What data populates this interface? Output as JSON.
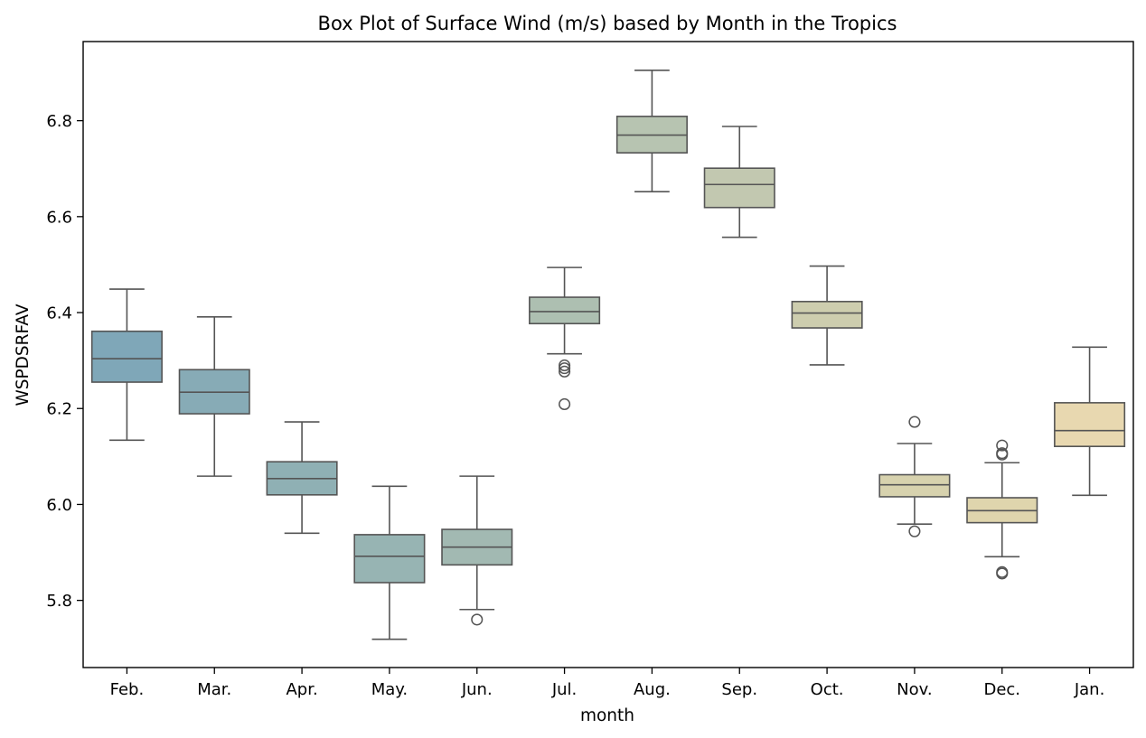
{
  "chart_data": {
    "type": "box",
    "title": "Box Plot of Surface Wind (m/s) based by Month in the Tropics",
    "xlabel": "month",
    "ylabel": "WSPDSRFAV",
    "ylim": [
      5.66,
      6.965
    ],
    "yticks": [
      5.8,
      6.0,
      6.2,
      6.4,
      6.6,
      6.8
    ],
    "ytick_labels": [
      "5.8",
      "6.0",
      "6.2",
      "6.4",
      "6.6",
      "6.8"
    ],
    "grid": false,
    "categories": [
      "Feb.",
      "Mar.",
      "Apr.",
      "May.",
      "Jun.",
      "Jul.",
      "Aug.",
      "Sep.",
      "Oct.",
      "Nov.",
      "Dec.",
      "Jan."
    ],
    "boxes": [
      {
        "month": "Feb.",
        "whisker_low": 6.134,
        "q1": 6.255,
        "median": 6.304,
        "q3": 6.361,
        "whisker_high": 6.449,
        "outliers": [],
        "color": "#7fa7b8"
      },
      {
        "month": "Mar.",
        "whisker_low": 6.059,
        "q1": 6.189,
        "median": 6.234,
        "q3": 6.281,
        "whisker_high": 6.391,
        "outliers": [],
        "color": "#87abb6"
      },
      {
        "month": "Apr.",
        "whisker_low": 5.94,
        "q1": 6.02,
        "median": 6.054,
        "q3": 6.089,
        "whisker_high": 6.172,
        "outliers": [],
        "color": "#8fb0b4"
      },
      {
        "month": "May.",
        "whisker_low": 5.719,
        "q1": 5.837,
        "median": 5.892,
        "q3": 5.937,
        "whisker_high": 6.038,
        "outliers": [],
        "color": "#97b4b3"
      },
      {
        "month": "Jun.",
        "whisker_low": 5.781,
        "q1": 5.874,
        "median": 5.911,
        "q3": 5.948,
        "whisker_high": 6.059,
        "outliers": [
          5.76
        ],
        "color": "#a2b9b2"
      },
      {
        "month": "Jul.",
        "whisker_low": 6.314,
        "q1": 6.377,
        "median": 6.402,
        "q3": 6.432,
        "whisker_high": 6.494,
        "outliers": [
          6.29,
          6.284,
          6.277,
          6.209
        ],
        "color": "#adbfb1"
      },
      {
        "month": "Aug.",
        "whisker_low": 6.652,
        "q1": 6.733,
        "median": 6.77,
        "q3": 6.809,
        "whisker_high": 6.905,
        "outliers": [],
        "color": "#b7c4b1"
      },
      {
        "month": "Sep.",
        "whisker_low": 6.557,
        "q1": 6.619,
        "median": 6.667,
        "q3": 6.701,
        "whisker_high": 6.788,
        "outliers": [],
        "color": "#c2c8b0"
      },
      {
        "month": "Oct.",
        "whisker_low": 6.291,
        "q1": 6.368,
        "median": 6.399,
        "q3": 6.423,
        "whisker_high": 6.497,
        "outliers": [],
        "color": "#cdcdae"
      },
      {
        "month": "Nov.",
        "whisker_low": 5.959,
        "q1": 6.016,
        "median": 6.041,
        "q3": 6.062,
        "whisker_high": 6.127,
        "outliers": [
          6.172,
          5.944
        ],
        "color": "#d7d2ae"
      },
      {
        "month": "Dec.",
        "whisker_low": 5.891,
        "q1": 5.962,
        "median": 5.987,
        "q3": 6.014,
        "whisker_high": 6.087,
        "outliers": [
          6.123,
          6.107,
          6.104,
          5.859,
          5.856
        ],
        "color": "#dfd5ad"
      },
      {
        "month": "Jan.",
        "whisker_low": 6.019,
        "q1": 6.121,
        "median": 6.154,
        "q3": 6.212,
        "whisker_high": 6.328,
        "outliers": [],
        "color": "#e8d8b0"
      }
    ]
  }
}
